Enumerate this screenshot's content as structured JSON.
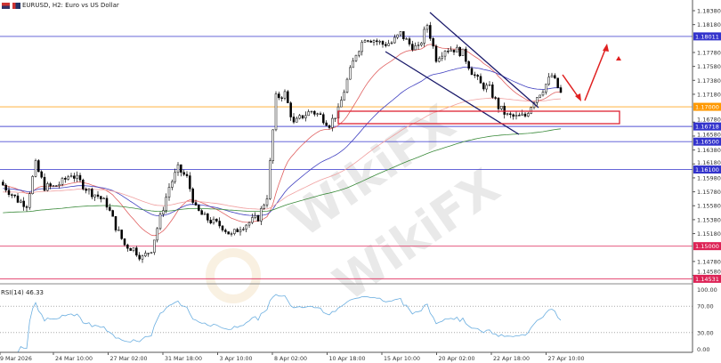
{
  "header": {
    "title": "EURUSD, H2:  Euro vs US Dollar",
    "icons": [
      "flag-icon",
      "chart-icon"
    ]
  },
  "chart_data": {
    "type": "candlestick",
    "symbol": "EURUSD",
    "timeframe": "H2",
    "ylim": [
      1.1452,
      1.1851
    ],
    "price_ticks": [
      "1.18380",
      "1.18180",
      "1.17780",
      "1.17580",
      "1.17380",
      "1.17180",
      "1.16780",
      "1.16580",
      "1.16380",
      "1.16180",
      "1.15980",
      "1.15780",
      "1.15580",
      "1.15380",
      "1.15180",
      "1.14780",
      "1.14580"
    ],
    "time_labels": [
      "9 Mar 2026",
      "24 Mar 10:00",
      "27 Mar 02:00",
      "31 Mar 18:00",
      "3 Apr 10:00",
      "8 Apr 02:00",
      "10 Apr 18:00",
      "15 Apr 10:00",
      "20 Apr 02:00",
      "22 Apr 18:00",
      "27 Apr 10:00"
    ],
    "approx_closes": [
      1.1592,
      1.1579,
      1.1566,
      1.156,
      1.1617,
      1.1585,
      1.1585,
      1.1592,
      1.1604,
      1.1592,
      1.1579,
      1.1572,
      1.156,
      1.1528,
      1.1502,
      1.1496,
      1.1483,
      1.1496,
      1.1541,
      1.1585,
      1.1611,
      1.1598,
      1.1553,
      1.1541,
      1.1534,
      1.1528,
      1.1515,
      1.1528,
      1.1534,
      1.1541,
      1.1572,
      1.1713,
      1.1719,
      1.1675,
      1.1687,
      1.1694,
      1.1687,
      1.1675,
      1.1694,
      1.1738,
      1.1777,
      1.18,
      1.1796,
      1.179,
      1.1792,
      1.1805,
      1.179,
      1.1783,
      1.1818,
      1.177,
      1.1783,
      1.1783,
      1.1777,
      1.1751,
      1.1732,
      1.1726,
      1.17,
      1.1687,
      1.1685,
      1.1687,
      1.171,
      1.1726,
      1.1745,
      1.1719
    ],
    "levels": [
      {
        "label": "1.18011",
        "price": 1.18011,
        "color": "#3333cc"
      },
      {
        "label": "1.17000",
        "price": 1.17,
        "color": "#ff9900"
      },
      {
        "label": "1.16718",
        "price": 1.16718,
        "color": "#3333cc"
      },
      {
        "label": "1.16500",
        "price": 1.165,
        "color": "#3333cc"
      },
      {
        "label": "1.16100",
        "price": 1.161,
        "color": "#3333cc"
      },
      {
        "label": "1.15000",
        "price": 1.15,
        "color": "#dd2255"
      },
      {
        "label": "1.14531",
        "price": 1.14531,
        "color": "#dd2255"
      }
    ],
    "moving_averages": [
      {
        "color": "#e06060"
      },
      {
        "color": "#4040c0"
      },
      {
        "color": "#f0a0a0"
      },
      {
        "color": "#3a8a3a"
      }
    ],
    "rsi": {
      "label": "RSI(14) 46.33",
      "period": 14,
      "value": 46.33,
      "ticks": [
        "100.00",
        "70.00",
        "30.00",
        "0.00"
      ],
      "levels": [
        70,
        30
      ],
      "ylim": [
        0,
        100
      ],
      "color": "#6aaee0"
    },
    "candle_color": "#000000",
    "grid": false
  },
  "watermark": {
    "text": "WikiFX"
  }
}
